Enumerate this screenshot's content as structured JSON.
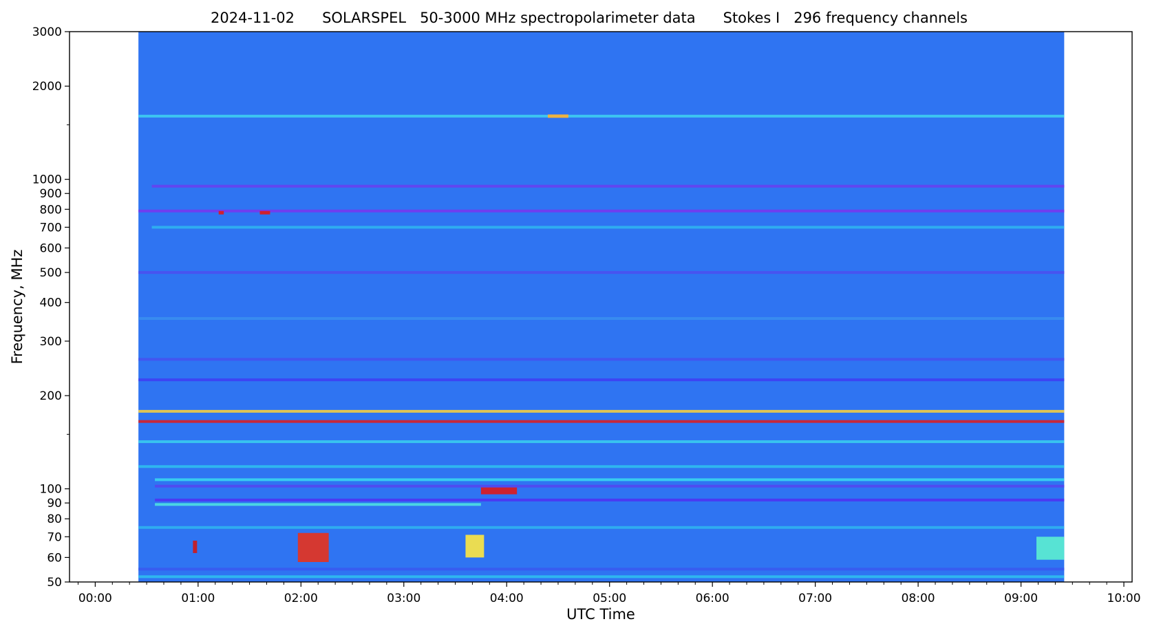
{
  "chart_data": {
    "type": "heatmap",
    "title": "2024-11-02      SOLARSPEL   50-3000 MHz spectropolarimeter data      Stokes I   296 frequency channels",
    "xlabel": "UTC Time",
    "ylabel": "Frequency, MHz",
    "x_range_hours": [
      -0.25,
      10.08
    ],
    "y_range_mhz": [
      50,
      3000
    ],
    "y_scale": "log",
    "x_ticks": [
      {
        "value": 0,
        "label": "00:00"
      },
      {
        "value": 1,
        "label": "01:00"
      },
      {
        "value": 2,
        "label": "02:00"
      },
      {
        "value": 3,
        "label": "03:00"
      },
      {
        "value": 4,
        "label": "04:00"
      },
      {
        "value": 5,
        "label": "05:00"
      },
      {
        "value": 6,
        "label": "06:00"
      },
      {
        "value": 7,
        "label": "07:00"
      },
      {
        "value": 8,
        "label": "08:00"
      },
      {
        "value": 9,
        "label": "09:00"
      },
      {
        "value": 10,
        "label": "10:00"
      }
    ],
    "y_ticks": [
      {
        "value": 50,
        "label": "50"
      },
      {
        "value": 60,
        "label": "60"
      },
      {
        "value": 70,
        "label": "70"
      },
      {
        "value": 80,
        "label": "80"
      },
      {
        "value": 90,
        "label": "90"
      },
      {
        "value": 100,
        "label": "100"
      },
      {
        "value": 200,
        "label": "200"
      },
      {
        "value": 300,
        "label": "300"
      },
      {
        "value": 400,
        "label": "400"
      },
      {
        "value": 500,
        "label": "500"
      },
      {
        "value": 600,
        "label": "600"
      },
      {
        "value": 700,
        "label": "700"
      },
      {
        "value": 800,
        "label": "800"
      },
      {
        "value": 900,
        "label": "900"
      },
      {
        "value": 1000,
        "label": "1000"
      },
      {
        "value": 2000,
        "label": "2000"
      },
      {
        "value": 3000,
        "label": "3000"
      }
    ],
    "y_minor_ticks": [
      150,
      1500
    ],
    "data_time_span_hours": [
      0.42,
      9.42
    ],
    "background_color": "#2f74f2",
    "bands": [
      {
        "freq": 1600,
        "start": 0.42,
        "end": 9.42,
        "color": "#3fd4f0"
      },
      {
        "freq": 950,
        "start": 0.55,
        "end": 9.42,
        "color": "#6a3df0"
      },
      {
        "freq": 790,
        "start": 0.42,
        "end": 9.42,
        "color": "#7a35ef"
      },
      {
        "freq": 700,
        "start": 0.55,
        "end": 9.42,
        "color": "#2fb6f0"
      },
      {
        "freq": 500,
        "start": 0.42,
        "end": 9.42,
        "color": "#4c4ef0"
      },
      {
        "freq": 355,
        "start": 0.42,
        "end": 9.42,
        "color": "#3a8ff0"
      },
      {
        "freq": 262,
        "start": 0.42,
        "end": 9.42,
        "color": "#4650f0"
      },
      {
        "freq": 225,
        "start": 0.42,
        "end": 9.42,
        "color": "#3f3cf3"
      },
      {
        "freq": 178,
        "start": 0.42,
        "end": 9.42,
        "color": "#ffd23a"
      },
      {
        "freq": 165,
        "start": 0.42,
        "end": 9.42,
        "color": "#e01a1a"
      },
      {
        "freq": 142,
        "start": 0.42,
        "end": 9.42,
        "color": "#39d0ef"
      },
      {
        "freq": 118,
        "start": 0.42,
        "end": 9.42,
        "color": "#2fc2ef"
      },
      {
        "freq": 107,
        "start": 0.58,
        "end": 9.42,
        "color": "#3adaf0"
      },
      {
        "freq": 102,
        "start": 0.58,
        "end": 9.42,
        "color": "#5545f0"
      },
      {
        "freq": 92,
        "start": 0.58,
        "end": 9.42,
        "color": "#5030f2"
      },
      {
        "freq": 89,
        "start": 0.58,
        "end": 3.75,
        "color": "#4fe6e0"
      },
      {
        "freq": 75,
        "start": 0.42,
        "end": 9.42,
        "color": "#2fb6f0"
      },
      {
        "freq": 55,
        "start": 0.42,
        "end": 9.42,
        "color": "#3a58f0"
      },
      {
        "freq": 52,
        "start": 0.42,
        "end": 9.42,
        "color": "#2fc2ef"
      }
    ],
    "bursts": [
      {
        "start": 1.97,
        "end": 2.27,
        "freq_low": 58,
        "freq_high": 72,
        "color": "#e8321c"
      },
      {
        "start": 3.6,
        "end": 3.78,
        "freq_low": 60,
        "freq_high": 71,
        "color": "#ffe840"
      },
      {
        "start": 3.75,
        "end": 4.1,
        "freq_low": 96,
        "freq_high": 101,
        "color": "#e01a1a"
      },
      {
        "start": 9.15,
        "end": 9.42,
        "freq_low": 59,
        "freq_high": 70,
        "color": "#5cf0d0"
      },
      {
        "start": 0.95,
        "end": 0.99,
        "freq_low": 62,
        "freq_high": 68,
        "color": "#d01818"
      },
      {
        "start": 1.2,
        "end": 1.25,
        "freq_low": 770,
        "freq_high": 790,
        "color": "#e01a1a"
      },
      {
        "start": 1.6,
        "end": 1.7,
        "freq_low": 770,
        "freq_high": 790,
        "color": "#e01a1a"
      },
      {
        "start": 4.4,
        "end": 4.6,
        "freq_low": 1580,
        "freq_high": 1620,
        "color": "#ffb030"
      }
    ]
  }
}
